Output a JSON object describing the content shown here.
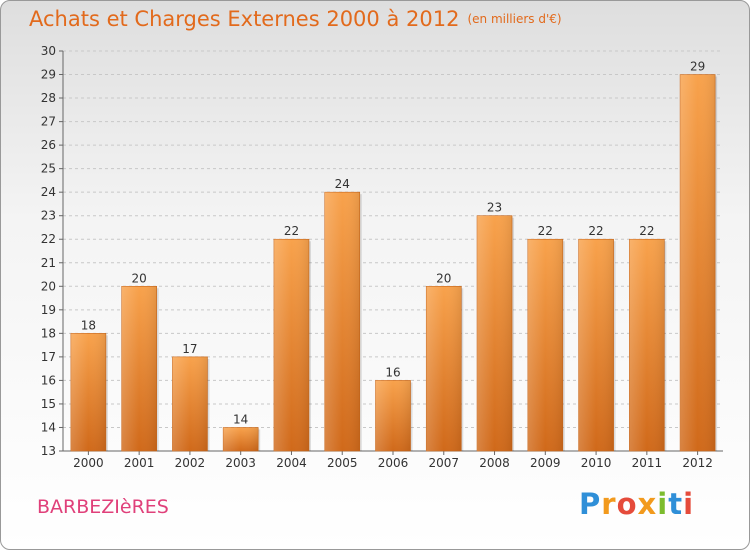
{
  "chart_data": {
    "type": "bar",
    "title": "Achats et Charges Externes 2000 à 2012",
    "subtitle": "(en milliers d'€)",
    "categories": [
      "2000",
      "2001",
      "2002",
      "2003",
      "2004",
      "2005",
      "2006",
      "2007",
      "2008",
      "2009",
      "2010",
      "2011",
      "2012"
    ],
    "values": [
      18,
      20,
      17,
      14,
      22,
      24,
      16,
      20,
      23,
      22,
      22,
      22,
      29
    ],
    "ylim": [
      13,
      30
    ],
    "yticks": [
      13,
      14,
      15,
      16,
      17,
      18,
      19,
      20,
      21,
      22,
      23,
      24,
      25,
      26,
      27,
      28,
      29,
      30
    ],
    "grid": "horizontal dashed",
    "bar_color": "#f5973a",
    "xlabel": "",
    "ylabel": ""
  },
  "footer": {
    "location": "BARBEZIèRES",
    "logo": "Proxiti"
  },
  "colors": {
    "title": "#e26a1c",
    "location": "#e0407a"
  }
}
